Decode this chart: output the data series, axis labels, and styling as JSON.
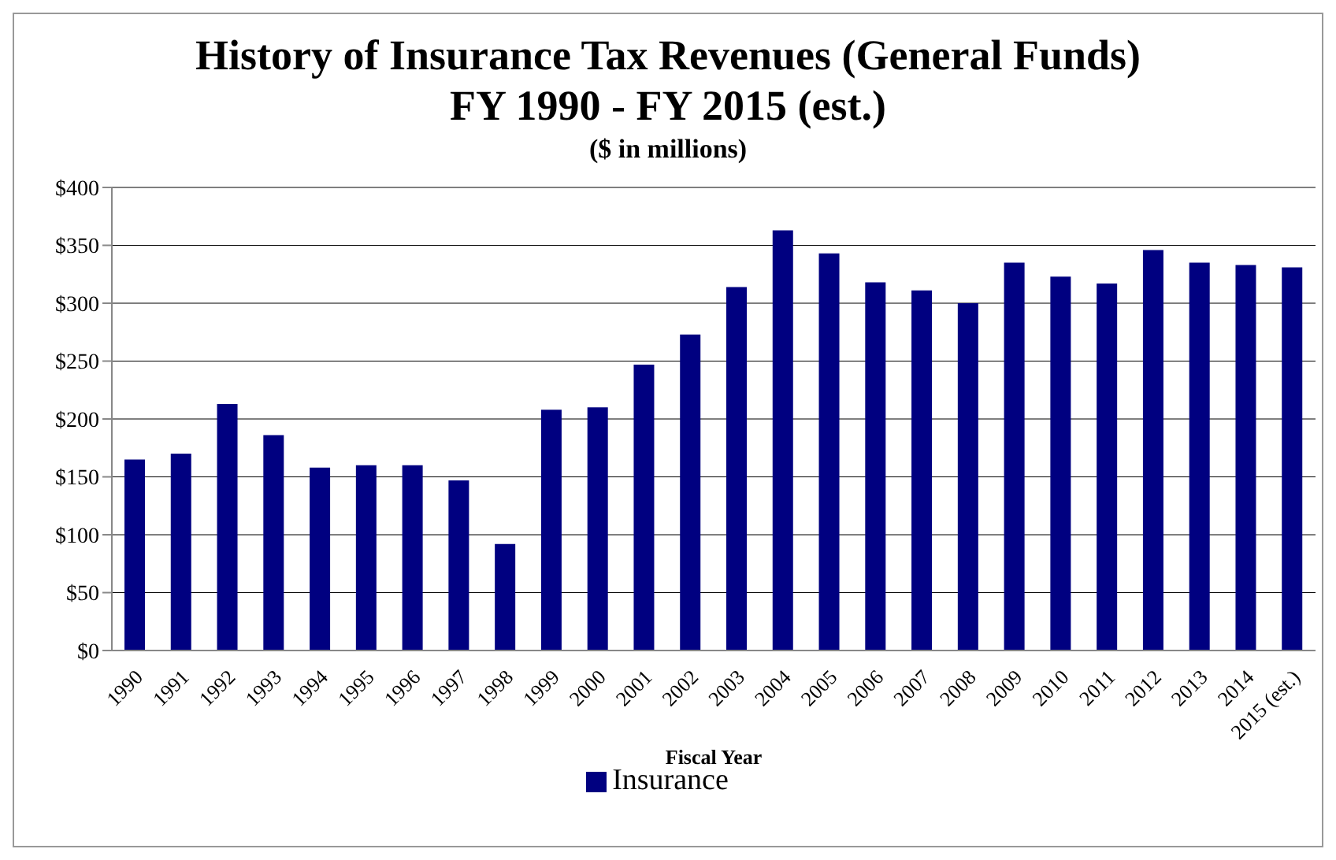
{
  "chart_data": {
    "type": "bar",
    "title": "History of Insurance Tax Revenues (General Funds)\nFY 1990 - FY 2015 (est.)",
    "subtitle": "($ in millions)",
    "xlabel": "Fiscal Year",
    "categories": [
      "1990",
      "1991",
      "1992",
      "1993",
      "1994",
      "1995",
      "1996",
      "1997",
      "1998",
      "1999",
      "2000",
      "2001",
      "2002",
      "2003",
      "2004",
      "2005",
      "2006",
      "2007",
      "2008",
      "2009",
      "2010",
      "2011",
      "2012",
      "2013",
      "2014",
      "2015 (est.)"
    ],
    "series": [
      {
        "name": "Insurance",
        "color": "#000080",
        "values": [
          165,
          170,
          213,
          186,
          158,
          160,
          160,
          147,
          92,
          208,
          210,
          247,
          273,
          314,
          363,
          343,
          318,
          311,
          300,
          335,
          323,
          317,
          346,
          335,
          333,
          331
        ]
      }
    ],
    "ylim": [
      0,
      400
    ],
    "yticks": [
      {
        "value": 0,
        "label": "$0"
      },
      {
        "value": 50,
        "label": "$50"
      },
      {
        "value": 100,
        "label": "$100"
      },
      {
        "value": 150,
        "label": "$150"
      },
      {
        "value": 200,
        "label": "$200"
      },
      {
        "value": 250,
        "label": "$250"
      },
      {
        "value": 300,
        "label": "$300"
      },
      {
        "value": 350,
        "label": "$350"
      },
      {
        "value": 400,
        "label": "$400"
      }
    ],
    "grid": "y",
    "legend": "bottom"
  }
}
